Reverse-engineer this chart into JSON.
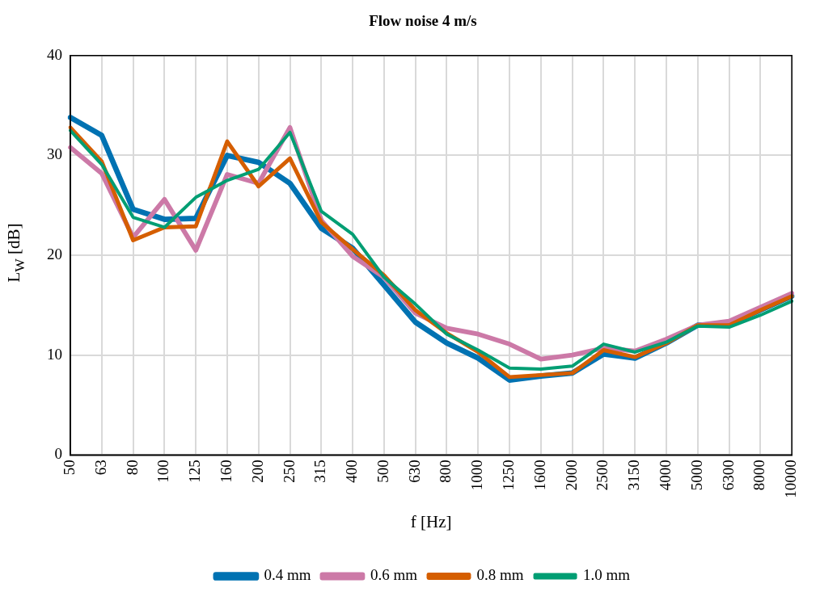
{
  "chart_data": {
    "type": "line",
    "title": "Flow noise 4 m/s",
    "xlabel": "f [Hz]",
    "ylabel": "L$_{W}$ [dB]",
    "categories": [
      "50",
      "63",
      "80",
      "100",
      "125",
      "160",
      "200",
      "250",
      "315",
      "400",
      "500",
      "630",
      "800",
      "1000",
      "1250",
      "1600",
      "2000",
      "2500",
      "3150",
      "4000",
      "5000",
      "6300",
      "8000",
      "10000"
    ],
    "series": [
      {
        "name": "0.4 mm",
        "color": "#0072b2",
        "values": [
          33.8,
          32,
          24.6,
          23.6,
          23.7,
          30,
          29.3,
          27.2,
          22.7,
          20.7,
          17,
          13.3,
          11.2,
          9.7,
          7.5,
          7.9,
          8.2,
          10.1,
          9.7,
          11.2,
          13,
          13.1,
          14.5,
          15.9
        ]
      },
      {
        "name": "0.6 mm",
        "color": "#cc79a7",
        "values": [
          30.8,
          28.2,
          21.8,
          25.6,
          20.5,
          28.1,
          27.2,
          32.8,
          23.5,
          19.9,
          17.8,
          14.2,
          12.7,
          12.1,
          11.1,
          9.6,
          10,
          10.7,
          10.4,
          11.6,
          13,
          13.4,
          14.8,
          16.2
        ]
      },
      {
        "name": "0.8 mm",
        "color": "#d55e00",
        "values": [
          32.8,
          29.4,
          21.5,
          22.8,
          22.9,
          31.4,
          26.9,
          29.7,
          23.3,
          20.6,
          18,
          14.5,
          12.2,
          10.3,
          7.8,
          8,
          8.2,
          10.5,
          9.8,
          11.2,
          13,
          13,
          14.5,
          15.9
        ]
      },
      {
        "name": "1.0 mm",
        "color": "#009e73",
        "values": [
          32.5,
          29.1,
          23.8,
          22.8,
          25.8,
          27.5,
          28.6,
          32.3,
          24.4,
          22.1,
          17.8,
          15.1,
          12.1,
          10.5,
          8.7,
          8.6,
          8.9,
          11.1,
          10.3,
          11.3,
          12.9,
          12.8,
          14,
          15.4
        ]
      }
    ],
    "ylim": [
      0,
      40
    ],
    "yticks": [
      0,
      10,
      20,
      30,
      40
    ],
    "grid": true,
    "legend": "bottom",
    "marker": "none",
    "line_style": "solid"
  }
}
